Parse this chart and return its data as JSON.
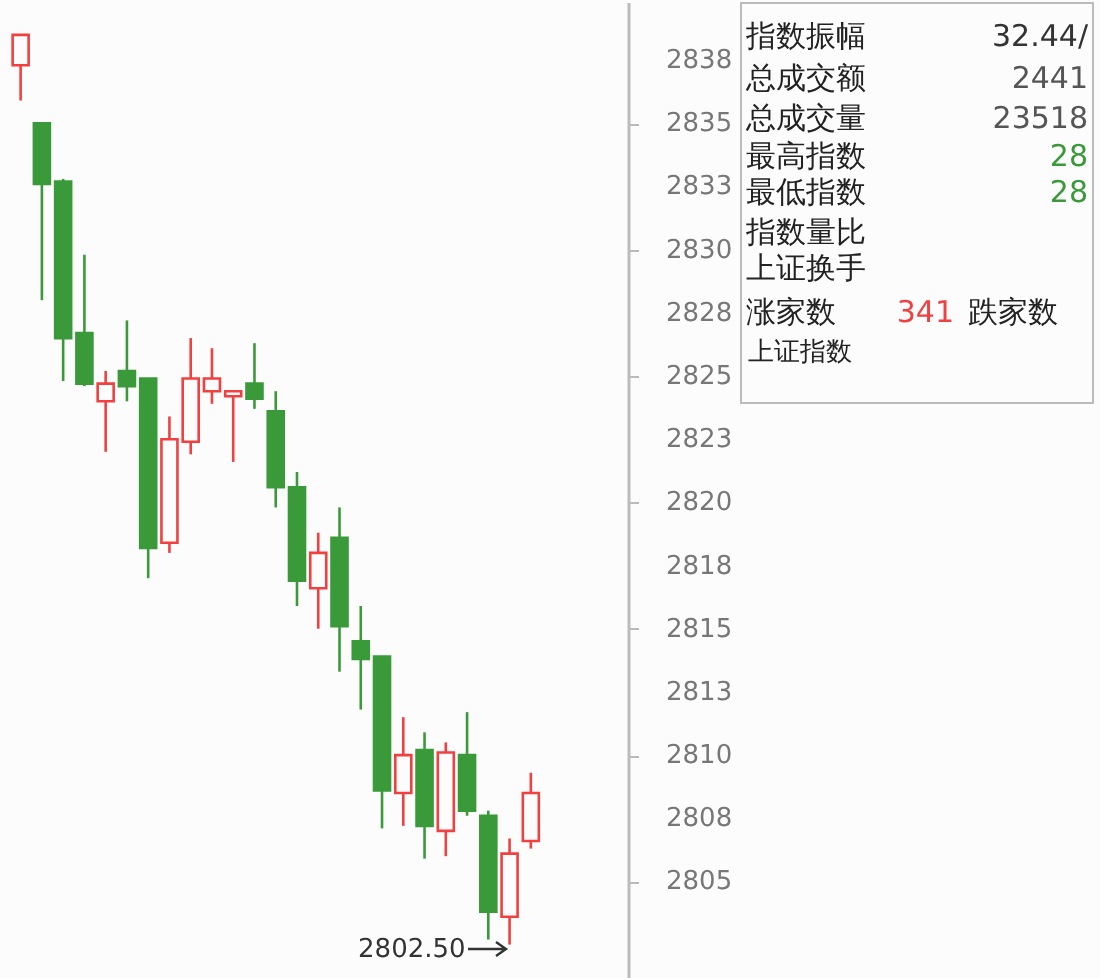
{
  "chart_data": [
    {
      "type": "candlestick",
      "categories": [
        null,
        null,
        null,
        null,
        null,
        null,
        null,
        null,
        null,
        null,
        null,
        null,
        null,
        null,
        null,
        null,
        null,
        null,
        null,
        null,
        null,
        null,
        null,
        null,
        null
      ],
      "ohlc": [
        [
          2837.3,
          2838.5,
          2835.9,
          2838.5
        ],
        [
          2835.0,
          2835.0,
          2828.0,
          2832.6
        ],
        [
          2832.7,
          2832.8,
          2824.8,
          2826.5
        ],
        [
          2826.7,
          2829.8,
          2824.6,
          2824.7
        ],
        [
          2824.0,
          2825.2,
          2822.0,
          2824.7
        ],
        [
          2825.2,
          2827.2,
          2824.0,
          2824.6
        ],
        [
          2824.9,
          2824.9,
          2817.0,
          2818.2
        ],
        [
          2818.4,
          2823.4,
          2818.0,
          2822.5
        ],
        [
          2822.4,
          2826.5,
          2821.9,
          2824.9
        ],
        [
          2824.4,
          2826.1,
          2823.9,
          2824.9
        ],
        [
          2824.2,
          2824.4,
          2821.6,
          2824.4
        ],
        [
          2824.7,
          2826.3,
          2823.7,
          2824.1
        ],
        [
          2823.6,
          2824.4,
          2819.8,
          2820.6
        ],
        [
          2820.6,
          2821.2,
          2815.9,
          2816.9
        ],
        [
          2816.6,
          2818.8,
          2815.0,
          2818.0
        ],
        [
          2818.6,
          2819.8,
          2813.3,
          2815.1
        ],
        [
          2814.5,
          2815.9,
          2811.8,
          2813.8
        ],
        [
          2813.9,
          2813.9,
          2807.1,
          2808.6
        ],
        [
          2808.5,
          2811.5,
          2807.2,
          2810.0
        ],
        [
          2810.2,
          2810.9,
          2805.9,
          2807.2
        ],
        [
          2807.0,
          2810.5,
          2806.0,
          2810.1
        ],
        [
          2810.0,
          2811.7,
          2807.6,
          2807.8
        ],
        [
          2807.6,
          2807.8,
          2802.7,
          2803.8
        ],
        [
          2803.6,
          2806.7,
          2802.5,
          2806.1
        ],
        [
          2806.6,
          2809.3,
          2806.3,
          2808.5
        ]
      ],
      "colors": [
        "#f04040",
        "#3a9a3a",
        "#3a9a3a",
        "#3a9a3a",
        "#f04040",
        "#3a9a3a",
        "#3a9a3a",
        "#f04040",
        "#f04040",
        "#f04040",
        "#f04040",
        "#3a9a3a",
        "#3a9a3a",
        "#3a9a3a",
        "#f04040",
        "#3a9a3a",
        "#3a9a3a",
        "#3a9a3a",
        "#f04040",
        "#3a9a3a",
        "#f04040",
        "#3a9a3a",
        "#3a9a3a",
        "#f04040",
        "#f04040"
      ],
      "ylim": [
        2801.1,
        2839.8
      ],
      "yticks": [
        2805,
        {
          "value": 2807.5,
          "label": "2808"
        },
        2810,
        {
          "value": 2812.5,
          "label": "2813"
        },
        2815,
        {
          "value": 2817.5,
          "label": "2818"
        },
        2820,
        {
          "value": 2822.5,
          "label": "2823"
        },
        2825,
        {
          "value": 2827.5,
          "label": "2828"
        },
        2830,
        {
          "value": 2832.5,
          "label": "2833"
        },
        2835,
        {
          "value": 2837.5,
          "label": "2838"
        }
      ],
      "grid": false,
      "annotations": [
        "2802.50"
      ]
    },
    {
      "type": "other",
      "title": "上证指数",
      "annotations": [
        "指数振幅",
        "32.44/",
        "总成交额",
        "2441",
        "总成交量",
        "23518",
        "最高指数",
        "28",
        "最低指数",
        "28",
        "指数量比",
        "上证换手",
        "涨家数",
        "341",
        "跌家数"
      ]
    }
  ]
}
